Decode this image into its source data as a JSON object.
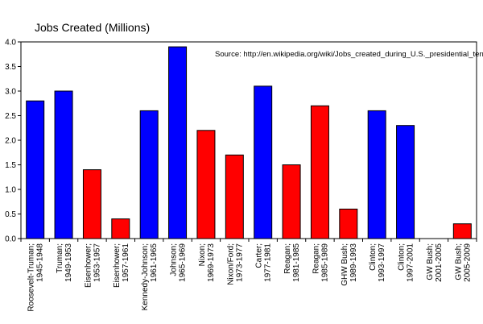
{
  "chart_data": {
    "type": "bar",
    "title": "Jobs Created (Millions)",
    "source": "Source: http://en.wikipedia.org/wiki/Jobs_created_during_U.S._presidential_terms",
    "xlabel": "",
    "ylabel": "",
    "ylim": [
      0,
      4.0
    ],
    "yticks": [
      "0.0",
      "0.5",
      "1.0",
      "1.5",
      "2.0",
      "2.5",
      "3.0",
      "3.5",
      "4.0"
    ],
    "grid": false,
    "legend": "none",
    "colors": {
      "blue": "#0000ff",
      "red": "#ff0000"
    },
    "categories": [
      "Roosevelt-Truman; 1945-1948",
      "Truman; 1949-1953",
      "Eisenhower; 1953-1957",
      "Eisenhower; 1957-1961",
      "Kennedy-Johnson; 1961-1965",
      "Johnson; 1965-1969",
      "Nixon; 1969-1973",
      "Nixon/Ford; 1973-1977",
      "Carter; 1977-1981",
      "Reagan; 1981-1985",
      "Reagan; 1985-1989",
      "GHW Bush; 1989-1993",
      "Clinton; 1993-1997",
      "Clinton; 1997-2001",
      "GW Bush; 2001-2005",
      "GW Bush; 2005-2009"
    ],
    "values": [
      2.8,
      3.0,
      1.4,
      0.4,
      2.6,
      3.9,
      2.2,
      1.7,
      3.1,
      1.5,
      2.7,
      0.6,
      2.6,
      2.3,
      0.0,
      0.3
    ],
    "bar_colors": [
      "blue",
      "blue",
      "red",
      "red",
      "blue",
      "blue",
      "red",
      "red",
      "blue",
      "red",
      "red",
      "red",
      "blue",
      "blue",
      "red",
      "red"
    ]
  }
}
